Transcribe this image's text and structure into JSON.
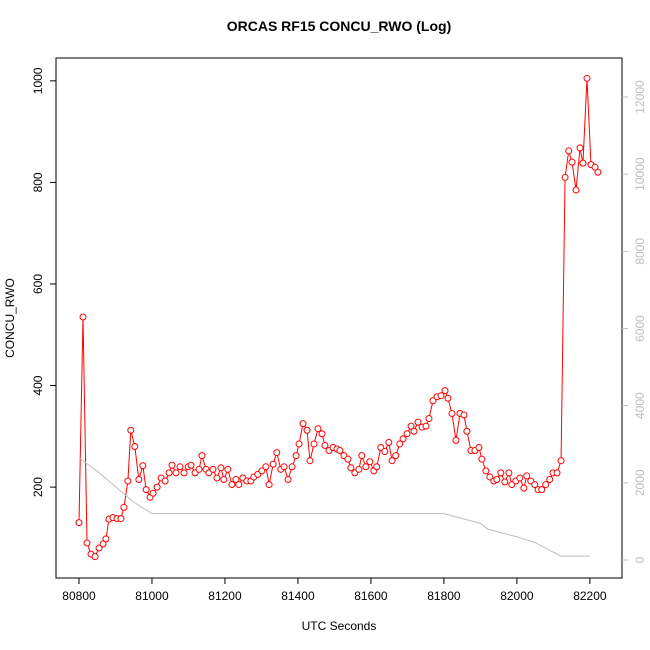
{
  "chart_data": {
    "type": "line",
    "title": "ORCAS RF15 CONCU_RWO (Log)",
    "x_label": "UTC Seconds",
    "y_label": "CONCU_RWO",
    "xlim": [
      80737,
      82288
    ],
    "xticks": [
      80800,
      81000,
      81200,
      81400,
      81600,
      81800,
      82000,
      82200
    ],
    "ylim": [
      21,
      1045
    ],
    "yticks": [
      200,
      400,
      600,
      800,
      1000
    ],
    "y2lim": [
      -467,
      13011
    ],
    "y2ticks": [
      0,
      2000,
      4000,
      6000,
      8000,
      10000,
      12000
    ],
    "series": [
      {
        "name": "CONCU_RWO",
        "color": "#ff0000",
        "markers": true,
        "x": [
          80800,
          80811,
          80822,
          80833,
          80844,
          80855,
          80866,
          80874,
          80882,
          80893,
          80904,
          80915,
          80923,
          80934,
          80942,
          80953,
          80964,
          80975,
          80984,
          80995,
          81003,
          81014,
          81025,
          81036,
          81047,
          81055,
          81066,
          81077,
          81088,
          81099,
          81107,
          81118,
          81129,
          81137,
          81148,
          81156,
          81167,
          81178,
          81189,
          81197,
          81208,
          81219,
          81230,
          81238,
          81249,
          81260,
          81271,
          81279,
          81290,
          81301,
          81312,
          81321,
          81332,
          81342,
          81353,
          81362,
          81373,
          81384,
          81395,
          81403,
          81414,
          81425,
          81433,
          81444,
          81455,
          81466,
          81474,
          81485,
          81496,
          81507,
          81515,
          81526,
          81537,
          81545,
          81556,
          81567,
          81575,
          81586,
          81597,
          81608,
          81616,
          81627,
          81638,
          81649,
          81658,
          81668,
          81679,
          81688,
          81699,
          81710,
          81718,
          81729,
          81740,
          81751,
          81759,
          81770,
          81781,
          81792,
          81803,
          81811,
          81822,
          81833,
          81844,
          81855,
          81863,
          81874,
          81885,
          81896,
          81904,
          81915,
          81926,
          81937,
          81945,
          81956,
          81967,
          81978,
          81986,
          81997,
          82008,
          82019,
          82027,
          82038,
          82049,
          82058,
          82068,
          82079,
          82090,
          82099,
          82110,
          82121,
          82132,
          82142,
          82151,
          82162,
          82173,
          82181,
          82192,
          82203,
          82214,
          82222
        ],
        "values": [
          130,
          535,
          90,
          68,
          63,
          80,
          88,
          98,
          137,
          140,
          138,
          138,
          160,
          212,
          312,
          280,
          215,
          242,
          195,
          180,
          188,
          200,
          218,
          212,
          228,
          243,
          228,
          240,
          228,
          240,
          243,
          228,
          235,
          262,
          235,
          228,
          235,
          218,
          238,
          215,
          235,
          205,
          215,
          205,
          218,
          212,
          212,
          220,
          225,
          232,
          240,
          205,
          245,
          268,
          235,
          240,
          215,
          240,
          262,
          285,
          325,
          312,
          252,
          285,
          315,
          305,
          282,
          272,
          278,
          275,
          272,
          262,
          255,
          238,
          228,
          235,
          262,
          240,
          250,
          232,
          240,
          278,
          270,
          288,
          252,
          262,
          285,
          295,
          305,
          320,
          310,
          328,
          318,
          320,
          335,
          370,
          378,
          380,
          390,
          375,
          345,
          292,
          345,
          342,
          310,
          272,
          272,
          278,
          255,
          232,
          220,
          212,
          215,
          228,
          210,
          228,
          205,
          212,
          218,
          198,
          222,
          212,
          205,
          195,
          195,
          205,
          215,
          228,
          228,
          252,
          810,
          862,
          840,
          785,
          868,
          838,
          1005,
          835,
          830,
          820
        ]
      },
      {
        "name": "Gray",
        "color": "#bebebe",
        "axis": "y2",
        "markers": false,
        "x": [
          80800,
          80850,
          80900,
          80950,
          81000,
          81800,
          81900,
          81920,
          82000,
          82050,
          82120,
          82200
        ],
        "values": [
          2650,
          2300,
          1900,
          1500,
          1200,
          1200,
          950,
          800,
          600,
          450,
          100,
          100
        ]
      }
    ]
  }
}
